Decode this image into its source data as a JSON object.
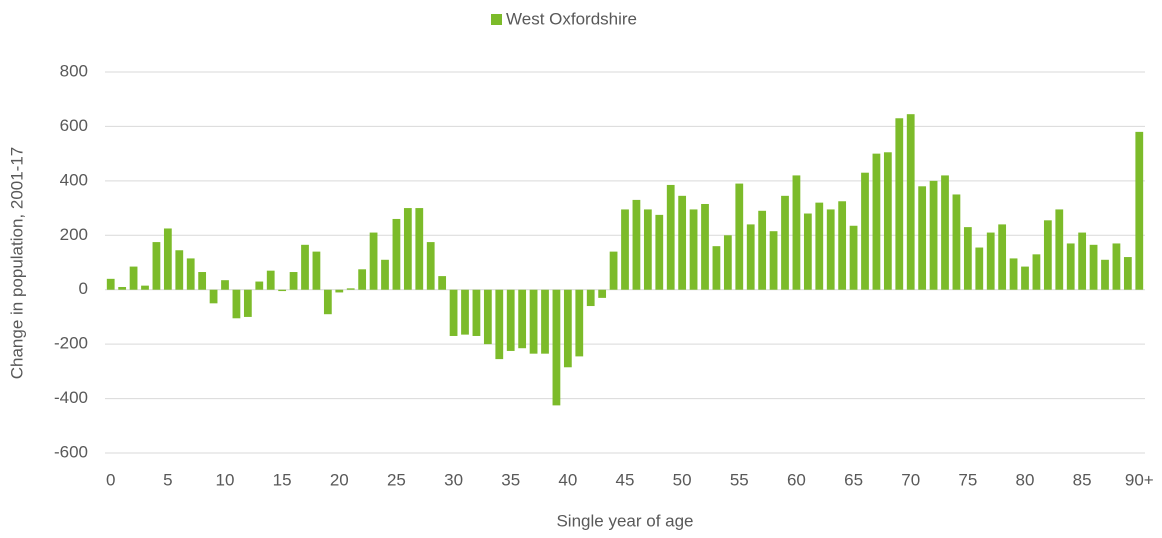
{
  "chart_data": {
    "type": "bar",
    "y_label": "Change in population, 2001-17",
    "x_label": "Single year of age",
    "categories": [
      "0",
      null,
      null,
      null,
      null,
      "5",
      null,
      null,
      null,
      null,
      "10",
      null,
      null,
      null,
      null,
      "15",
      null,
      null,
      null,
      null,
      "20",
      null,
      null,
      null,
      null,
      "25",
      null,
      null,
      null,
      null,
      "30",
      null,
      null,
      null,
      null,
      "35",
      null,
      null,
      null,
      null,
      "40",
      null,
      null,
      null,
      null,
      "45",
      null,
      null,
      null,
      null,
      "50",
      null,
      null,
      null,
      null,
      "55",
      null,
      null,
      null,
      null,
      "60",
      null,
      null,
      null,
      null,
      "65",
      null,
      null,
      null,
      null,
      "70",
      null,
      null,
      null,
      null,
      "75",
      null,
      null,
      null,
      null,
      "80",
      null,
      null,
      null,
      null,
      "85",
      null,
      null,
      null,
      null,
      "90+"
    ],
    "series": [
      {
        "name": "West Oxfordshire",
        "color": "#7cbb2a",
        "values": [
          40,
          10,
          85,
          15,
          175,
          225,
          145,
          115,
          65,
          -50,
          35,
          -105,
          -100,
          30,
          70,
          -5,
          65,
          165,
          140,
          -90,
          -10,
          5,
          75,
          210,
          110,
          260,
          300,
          300,
          175,
          50,
          -170,
          -165,
          -170,
          -200,
          -255,
          -225,
          -215,
          -235,
          -235,
          -425,
          -285,
          -245,
          -60,
          -30,
          140,
          295,
          330,
          295,
          275,
          385,
          345,
          295,
          315,
          160,
          200,
          390,
          240,
          290,
          215,
          345,
          420,
          280,
          320,
          295,
          325,
          235,
          430,
          500,
          505,
          630,
          645,
          380,
          400,
          420,
          350,
          230,
          155,
          210,
          240,
          115,
          85,
          130,
          255,
          295,
          170,
          210,
          165,
          110,
          170,
          120,
          580
        ]
      }
    ],
    "ylim": [
      -600,
      800
    ],
    "yticks": [
      -600,
      -400,
      -200,
      0,
      200,
      400,
      600,
      800
    ],
    "grid": true,
    "legend": "top"
  }
}
